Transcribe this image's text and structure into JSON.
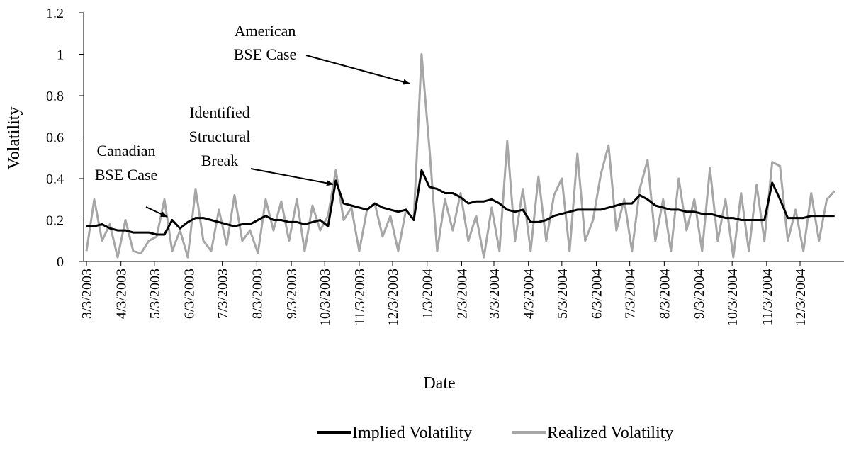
{
  "chart_data": {
    "type": "line",
    "x_label": "Date",
    "y_label": "Volatility",
    "x": [
      "3/3/2003",
      "3/10/2003",
      "3/17/2003",
      "3/24/2003",
      "3/31/2003",
      "4/7/2003",
      "4/14/2003",
      "4/21/2003",
      "4/28/2003",
      "5/5/2003",
      "5/12/2003",
      "5/19/2003",
      "5/26/2003",
      "6/2/2003",
      "6/9/2003",
      "6/16/2003",
      "6/23/2003",
      "6/30/2003",
      "7/7/2003",
      "7/14/2003",
      "7/21/2003",
      "7/28/2003",
      "8/4/2003",
      "8/11/2003",
      "8/18/2003",
      "8/25/2003",
      "9/1/2003",
      "9/8/2003",
      "9/15/2003",
      "9/22/2003",
      "9/29/2003",
      "10/6/2003",
      "10/13/2003",
      "10/20/2003",
      "10/27/2003",
      "11/3/2003",
      "11/10/2003",
      "11/17/2003",
      "11/24/2003",
      "12/1/2003",
      "12/8/2003",
      "12/15/2003",
      "12/22/2003",
      "12/29/2003",
      "1/5/2004",
      "1/12/2004",
      "1/19/2004",
      "1/26/2004",
      "2/2/2004",
      "2/9/2004",
      "2/16/2004",
      "2/23/2004",
      "3/1/2004",
      "3/8/2004",
      "3/15/2004",
      "3/22/2004",
      "3/29/2004",
      "4/5/2004",
      "4/12/2004",
      "4/19/2004",
      "4/26/2004",
      "5/3/2004",
      "5/10/2004",
      "5/17/2004",
      "5/24/2004",
      "5/31/2004",
      "6/7/2004",
      "6/14/2004",
      "6/21/2004",
      "6/28/2004",
      "7/5/2004",
      "7/12/2004",
      "7/19/2004",
      "7/26/2004",
      "8/2/2004",
      "8/9/2004",
      "8/16/2004",
      "8/23/2004",
      "8/30/2004",
      "9/6/2004",
      "9/13/2004",
      "9/20/2004",
      "9/27/2004",
      "10/4/2004",
      "10/11/2004",
      "10/18/2004",
      "10/25/2004",
      "11/1/2004",
      "11/8/2004",
      "11/15/2004",
      "11/22/2004",
      "11/29/2004",
      "12/6/2004",
      "12/13/2004",
      "12/20/2004",
      "12/27/2004",
      "1/3/2005"
    ],
    "series": [
      {
        "name": "Implied Volatility",
        "color": "#000000",
        "values": [
          0.17,
          0.17,
          0.18,
          0.16,
          0.15,
          0.15,
          0.14,
          0.14,
          0.14,
          0.13,
          0.13,
          0.2,
          0.16,
          0.19,
          0.21,
          0.21,
          0.2,
          0.19,
          0.18,
          0.17,
          0.18,
          0.18,
          0.2,
          0.22,
          0.2,
          0.2,
          0.19,
          0.19,
          0.18,
          0.19,
          0.2,
          0.17,
          0.39,
          0.28,
          0.27,
          0.26,
          0.25,
          0.28,
          0.26,
          0.25,
          0.24,
          0.25,
          0.2,
          0.44,
          0.36,
          0.35,
          0.33,
          0.33,
          0.31,
          0.28,
          0.29,
          0.29,
          0.3,
          0.28,
          0.25,
          0.24,
          0.25,
          0.19,
          0.19,
          0.2,
          0.22,
          0.23,
          0.24,
          0.25,
          0.25,
          0.25,
          0.25,
          0.26,
          0.27,
          0.28,
          0.28,
          0.32,
          0.3,
          0.27,
          0.26,
          0.25,
          0.25,
          0.24,
          0.24,
          0.23,
          0.23,
          0.22,
          0.21,
          0.21,
          0.2,
          0.2,
          0.2,
          0.2,
          0.38,
          0.3,
          0.21,
          0.21,
          0.21,
          0.22,
          0.22,
          0.22,
          0.22
        ]
      },
      {
        "name": "Realized Volatility",
        "color": "#a6a6a6",
        "values": [
          0.05,
          0.3,
          0.1,
          0.18,
          0.02,
          0.2,
          0.05,
          0.04,
          0.1,
          0.12,
          0.3,
          0.05,
          0.15,
          0.02,
          0.35,
          0.1,
          0.05,
          0.25,
          0.08,
          0.32,
          0.1,
          0.15,
          0.04,
          0.3,
          0.15,
          0.29,
          0.1,
          0.3,
          0.05,
          0.27,
          0.15,
          0.22,
          0.44,
          0.2,
          0.26,
          0.05,
          0.25,
          0.28,
          0.12,
          0.22,
          0.05,
          0.25,
          0.2,
          1.0,
          0.55,
          0.05,
          0.3,
          0.15,
          0.33,
          0.1,
          0.22,
          0.02,
          0.26,
          0.05,
          0.58,
          0.1,
          0.35,
          0.05,
          0.41,
          0.1,
          0.32,
          0.4,
          0.05,
          0.52,
          0.1,
          0.2,
          0.42,
          0.56,
          0.15,
          0.3,
          0.05,
          0.35,
          0.49,
          0.1,
          0.3,
          0.05,
          0.4,
          0.15,
          0.3,
          0.05,
          0.45,
          0.1,
          0.3,
          0.02,
          0.33,
          0.05,
          0.37,
          0.1,
          0.48,
          0.46,
          0.1,
          0.25,
          0.05,
          0.33,
          0.1,
          0.3,
          0.34
        ]
      }
    ],
    "xlim": [
      "3/3/2003",
      "1/7/2005"
    ],
    "xticks": [
      "3/3/2003",
      "4/3/2003",
      "5/3/2003",
      "6/3/2003",
      "7/3/2003",
      "8/3/2003",
      "9/3/2003",
      "10/3/2003",
      "11/3/2003",
      "12/3/2003",
      "1/3/2004",
      "2/3/2004",
      "3/3/2004",
      "4/3/2004",
      "5/3/2004",
      "6/3/2004",
      "7/3/2004",
      "8/3/2004",
      "9/3/2004",
      "10/3/2004",
      "11/3/2004",
      "12/3/2004"
    ],
    "ylim": [
      0,
      1.2
    ],
    "yticks": [
      0,
      0.2,
      0.4,
      0.6,
      0.8,
      1,
      1.2
    ],
    "grid": false,
    "legend": "bottom",
    "annotations": [
      {
        "lines": [
          "Canadian",
          "BSE Case"
        ]
      },
      {
        "lines": [
          "Identified",
          "Structural",
          "Break"
        ]
      },
      {
        "lines": [
          "American",
          "BSE Case"
        ]
      }
    ]
  }
}
